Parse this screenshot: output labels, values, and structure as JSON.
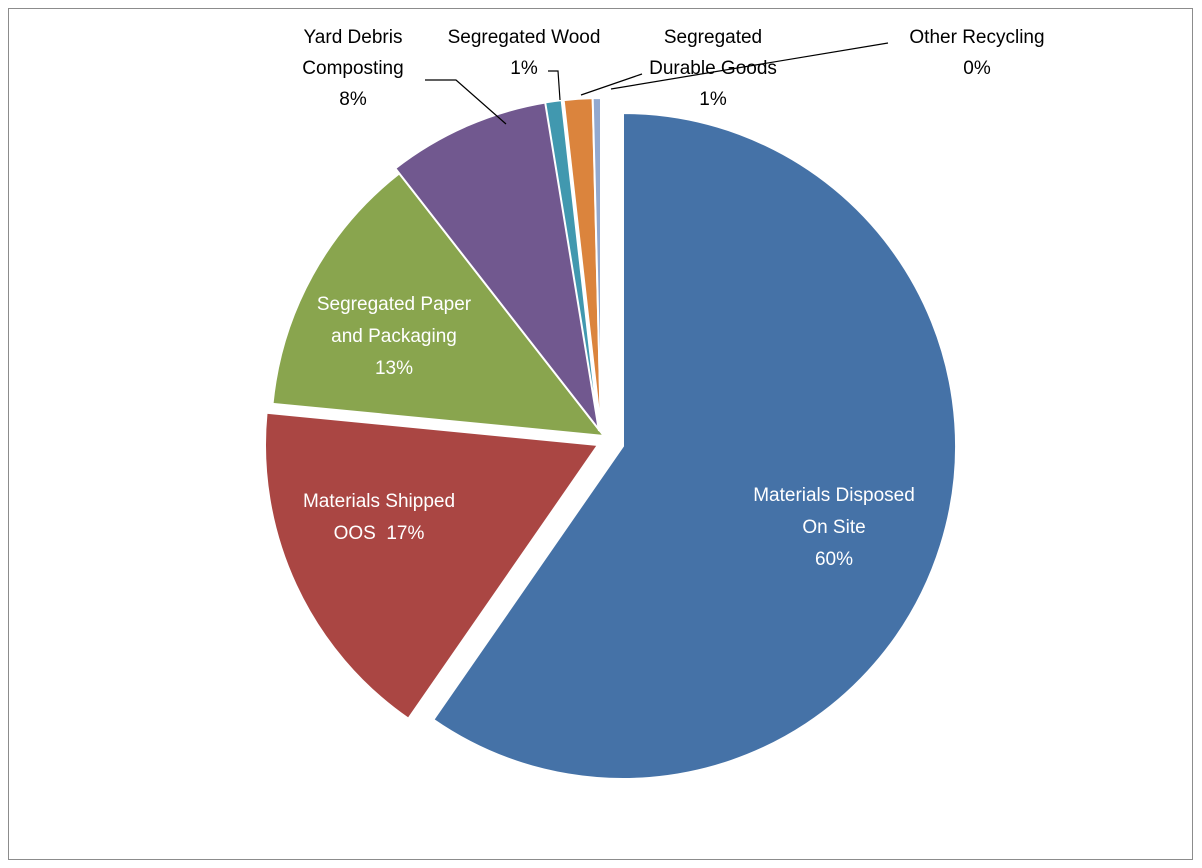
{
  "chart_data": {
    "type": "pie",
    "start_angle_deg": 0,
    "direction": "clockwise",
    "slices": [
      {
        "name": "Materials Disposed On Site",
        "value": 60,
        "label_lines": [
          "Materials Disposed",
          "On Site",
          "60%"
        ],
        "color": "#4572A7",
        "label_color": "#ffffff"
      },
      {
        "name": "Materials Shipped OOS",
        "value": 17,
        "label_lines": [
          "Materials Shipped",
          "OOS  17%"
        ],
        "color": "#AA4643",
        "label_color": "#ffffff"
      },
      {
        "name": "Segregated Paper and Packaging",
        "value": 13,
        "label_lines": [
          "Segregated Paper",
          "and Packaging",
          "13%"
        ],
        "color": "#89A54E",
        "label_color": "#ffffff"
      },
      {
        "name": "Yard Debris Composting",
        "value": 8,
        "label_lines": [
          "Yard Debris",
          "Composting",
          "8%"
        ],
        "color": "#71588F",
        "label_color": "#000000"
      },
      {
        "name": "Segregated Wood",
        "value": 0.8,
        "label_lines": [
          "Segregated Wood",
          "1%"
        ],
        "color": "#4198AF",
        "label_color": "#000000"
      },
      {
        "name": "Segregated Durable Goods",
        "value": 1.4,
        "label_lines": [
          "Segregated",
          "Durable Goods",
          "1%"
        ],
        "color": "#DB843D",
        "label_color": "#000000"
      },
      {
        "name": "Other Recycling",
        "value": 0.4,
        "label_lines": [
          "Other Recycling",
          "0%"
        ],
        "color": "#93A9CF",
        "label_color": "#000000"
      }
    ]
  }
}
